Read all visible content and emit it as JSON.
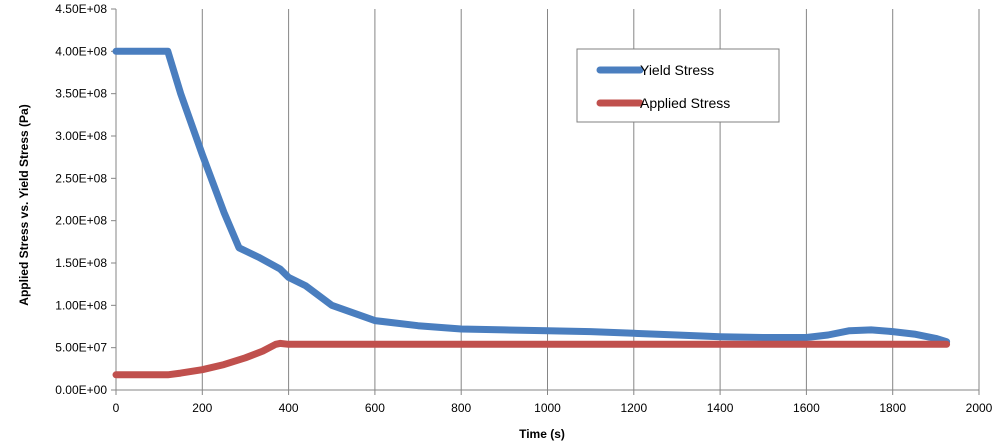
{
  "chart_data": {
    "type": "line",
    "title": "",
    "xlabel": "Time (s)",
    "ylabel": "Applied  Stress vs. Yield Stress (Pa)",
    "xlim": [
      0,
      2000
    ],
    "ylim": [
      0,
      450000000
    ],
    "x_ticks": [
      0,
      200,
      400,
      600,
      800,
      1000,
      1200,
      1400,
      1600,
      1800,
      2000
    ],
    "x_tick_labels": [
      "0",
      "200",
      "400",
      "600",
      "800",
      "1000",
      "1200",
      "1400",
      "1600",
      "1800",
      "2000"
    ],
    "y_ticks": [
      0,
      50000000,
      100000000,
      150000000,
      200000000,
      250000000,
      300000000,
      350000000,
      400000000,
      450000000
    ],
    "y_tick_labels": [
      "0.00E+00",
      "5.00E+07",
      "1.00E+08",
      "1.50E+08",
      "2.00E+08",
      "2.50E+08",
      "3.00E+08",
      "3.50E+08",
      "4.00E+08",
      "4.50E+08"
    ],
    "grid": "vertical",
    "legend_position": "top-right",
    "series": [
      {
        "name": "Yield Stress",
        "color": "#4a7ebf",
        "x": [
          0,
          120,
          150,
          200,
          250,
          285,
          330,
          380,
          400,
          440,
          500,
          600,
          700,
          800,
          900,
          1000,
          1100,
          1200,
          1300,
          1400,
          1500,
          1600,
          1650,
          1700,
          1750,
          1800,
          1850,
          1900,
          1925
        ],
        "y": [
          400000000,
          400000000,
          350000000,
          278000000,
          210000000,
          168000000,
          157000000,
          143000000,
          133000000,
          123000000,
          100000000,
          82000000,
          76000000,
          72000000,
          71000000,
          70000000,
          69000000,
          67000000,
          65000000,
          63000000,
          62000000,
          62000000,
          65000000,
          70000000,
          71000000,
          69000000,
          66000000,
          61000000,
          57000000
        ]
      },
      {
        "name": "Applied Stress",
        "color": "#c0504d",
        "x": [
          0,
          120,
          150,
          200,
          250,
          300,
          340,
          370,
          380,
          400,
          500,
          600,
          800,
          1000,
          1200,
          1400,
          1600,
          1800,
          1925
        ],
        "y": [
          18000000,
          18000000,
          20000000,
          24000000,
          30000000,
          38000000,
          46000000,
          54000000,
          55000000,
          54000000,
          54000000,
          54000000,
          54000000,
          54000000,
          54000000,
          54000000,
          54000000,
          54000000,
          54000000
        ]
      }
    ]
  }
}
